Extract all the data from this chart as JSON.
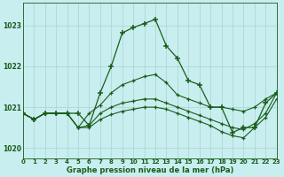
{
  "xlabel": "Graphe pression niveau de la mer (hPa)",
  "bg_color": "#c8eef0",
  "line_color": "#1a5c1a",
  "x_ticks": [
    0,
    1,
    2,
    3,
    4,
    5,
    6,
    7,
    8,
    9,
    10,
    11,
    12,
    13,
    14,
    15,
    16,
    17,
    18,
    19,
    20,
    21,
    22,
    23
  ],
  "ylim": [
    1019.75,
    1023.55
  ],
  "xlim": [
    0,
    23
  ],
  "yticks": [
    1020,
    1021,
    1022,
    1023
  ],
  "line1_x": [
    0,
    1,
    2,
    3,
    4,
    5,
    6,
    7,
    8,
    9,
    10,
    11,
    12,
    13,
    14,
    15,
    16,
    17,
    18,
    19,
    20,
    21,
    22,
    23
  ],
  "line1_y": [
    1020.85,
    1020.7,
    1020.85,
    1020.85,
    1020.85,
    1020.85,
    1020.55,
    1021.35,
    1022.0,
    1022.82,
    1022.95,
    1023.05,
    1023.15,
    1022.5,
    1022.2,
    1021.65,
    1021.55,
    1021.0,
    1021.0,
    1020.38,
    1020.5,
    1020.5,
    1021.1,
    1021.35
  ],
  "line2_x": [
    0,
    1,
    2,
    3,
    4,
    5,
    6,
    7,
    8,
    9,
    10,
    11,
    12,
    13,
    14,
    15,
    16,
    17,
    18,
    19,
    20,
    21,
    22,
    23
  ],
  "line2_y": [
    1020.85,
    1020.7,
    1020.85,
    1020.85,
    1020.85,
    1020.5,
    1020.85,
    1021.05,
    1021.35,
    1021.55,
    1021.65,
    1021.75,
    1021.8,
    1021.6,
    1021.3,
    1021.2,
    1021.1,
    1021.0,
    1021.0,
    1020.95,
    1020.9,
    1021.0,
    1021.2,
    1021.35
  ],
  "line3_x": [
    0,
    1,
    2,
    3,
    4,
    5,
    6,
    7,
    8,
    9,
    10,
    11,
    12,
    13,
    14,
    15,
    16,
    17,
    18,
    19,
    20,
    21,
    22,
    23
  ],
  "line3_y": [
    1020.85,
    1020.7,
    1020.85,
    1020.85,
    1020.85,
    1020.5,
    1020.55,
    1020.85,
    1021.0,
    1021.1,
    1021.15,
    1021.2,
    1021.2,
    1021.1,
    1021.0,
    1020.9,
    1020.8,
    1020.7,
    1020.6,
    1020.5,
    1020.45,
    1020.6,
    1020.85,
    1021.35
  ],
  "line4_x": [
    0,
    1,
    2,
    3,
    4,
    5,
    6,
    7,
    8,
    9,
    10,
    11,
    12,
    13,
    14,
    15,
    16,
    17,
    18,
    19,
    20,
    21,
    22,
    23
  ],
  "line4_y": [
    1020.85,
    1020.7,
    1020.85,
    1020.85,
    1020.85,
    1020.5,
    1020.5,
    1020.7,
    1020.82,
    1020.9,
    1020.95,
    1021.0,
    1021.0,
    1020.95,
    1020.85,
    1020.75,
    1020.65,
    1020.55,
    1020.4,
    1020.3,
    1020.25,
    1020.5,
    1020.75,
    1021.2
  ]
}
